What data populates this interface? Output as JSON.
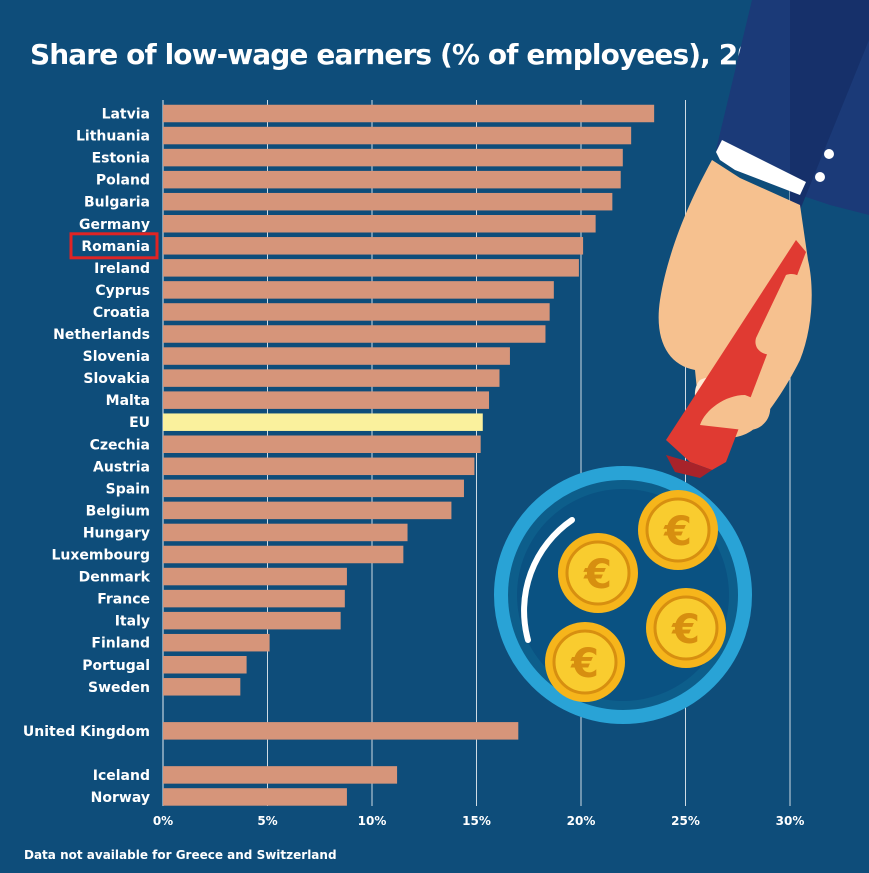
{
  "title": "Share of low-wage earners (% of employees), 2018",
  "footnote": "Data not available for Greece and Switzerland",
  "colors": {
    "background": "#0e4d7a",
    "bar": "#d6957a",
    "eu_bar": "#faf19d",
    "highlight_box": "#e02424",
    "grid": "#ffffff",
    "text": "#ffffff"
  },
  "decoration": {
    "description_icons": [
      "hand-icon",
      "magnifying-glass-icon",
      "euro-coin-icon"
    ]
  },
  "chart_data": {
    "type": "bar",
    "orientation": "horizontal",
    "title": "Share of low-wage earners (% of employees), 2018",
    "xlim": [
      0,
      30
    ],
    "x_ticks": [
      "0%",
      "5%",
      "10%",
      "15%",
      "20%",
      "25%",
      "30%"
    ],
    "grid": true,
    "highlighted_category": "Romania",
    "groups": [
      {
        "categories": [
          "Latvia",
          "Lithuania",
          "Estonia",
          "Poland",
          "Bulgaria",
          "Germany",
          "Romania",
          "Ireland",
          "Cyprus",
          "Croatia",
          "Netherlands",
          "Slovenia",
          "Slovakia",
          "Malta",
          "EU",
          "Czechia",
          "Austria",
          "Spain",
          "Belgium",
          "Hungary",
          "Luxembourg",
          "Denmark",
          "France",
          "Italy",
          "Finland",
          "Portugal",
          "Sweden"
        ],
        "values": [
          23.5,
          22.4,
          22.0,
          21.9,
          21.5,
          20.7,
          20.1,
          19.9,
          18.7,
          18.5,
          18.3,
          16.6,
          16.1,
          15.6,
          15.3,
          15.2,
          14.9,
          14.4,
          13.8,
          11.7,
          11.5,
          8.8,
          8.7,
          8.5,
          5.1,
          4.0,
          3.7
        ]
      },
      {
        "categories": [
          "United Kingdom"
        ],
        "values": [
          17.0
        ]
      },
      {
        "categories": [
          "Iceland",
          "Norway"
        ],
        "values": [
          11.2,
          8.8
        ]
      }
    ]
  }
}
